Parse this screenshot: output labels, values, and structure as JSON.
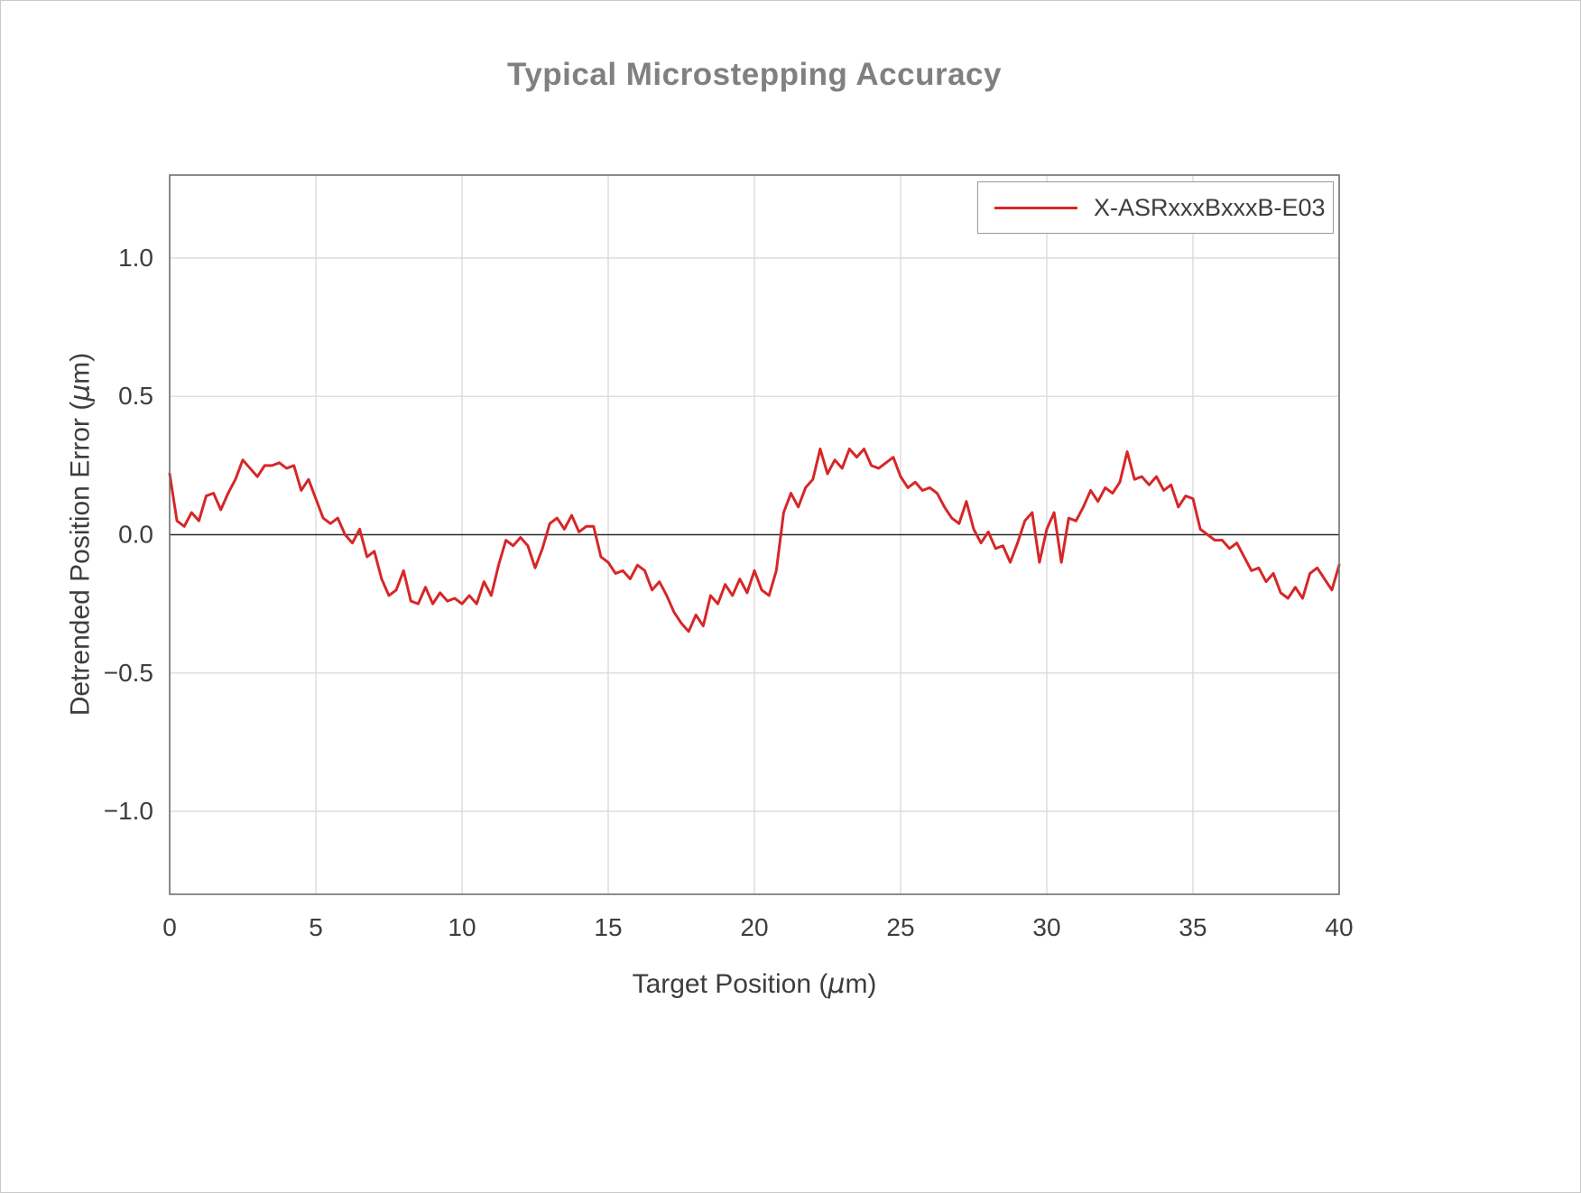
{
  "chart_data": {
    "type": "line",
    "title": "Typical Microstepping Accuracy",
    "xlabel": "Target Position (μm)",
    "ylabel": "Detrended Position Error (μm)",
    "xlabel_parts": {
      "pre": "Target Position (",
      "mu": "μ",
      "post": "m)"
    },
    "ylabel_parts": {
      "pre": "Detrended Position Error (",
      "mu": "μ",
      "post": "m)"
    },
    "xlim": [
      0,
      40
    ],
    "ylim": [
      -1.3,
      1.3
    ],
    "grid": true,
    "legend_position": "upper right",
    "x_ticks": {
      "values": [
        0,
        5,
        10,
        15,
        20,
        25,
        30,
        35,
        40
      ],
      "labels": [
        "0",
        "5",
        "10",
        "15",
        "20",
        "25",
        "30",
        "35",
        "40"
      ]
    },
    "y_ticks": {
      "values": [
        -1.0,
        -0.5,
        0.0,
        0.5,
        1.0
      ],
      "labels": [
        "−1.0",
        "−0.5",
        "0.0",
        "0.5",
        "1.0"
      ]
    },
    "legend": {
      "position": "upper right",
      "entries": [
        {
          "label": "X-ASRxxxBxxxB-E03",
          "color": "#d62728"
        }
      ]
    },
    "style": {
      "line_color": "#d62728",
      "grid_color": "#d9d9d9",
      "frame_color": "#707070",
      "zero_line_color": "#2b2b2b",
      "tick_color": "#3d3d3d",
      "title_color": "#808080",
      "label_color": "#3d3d3d",
      "background": "#ffffff"
    },
    "series": [
      {
        "name": "X-ASRxxxBxxxB-E03",
        "color": "#d62728",
        "x_start": 0,
        "x_step": 0.25,
        "y": [
          0.22,
          0.05,
          0.03,
          0.08,
          0.05,
          0.14,
          0.15,
          0.09,
          0.15,
          0.2,
          0.27,
          0.24,
          0.21,
          0.25,
          0.25,
          0.26,
          0.24,
          0.25,
          0.16,
          0.2,
          0.13,
          0.06,
          0.04,
          0.06,
          0.0,
          -0.03,
          0.02,
          -0.08,
          -0.06,
          -0.16,
          -0.22,
          -0.2,
          -0.13,
          -0.24,
          -0.25,
          -0.19,
          -0.25,
          -0.21,
          -0.24,
          -0.23,
          -0.25,
          -0.22,
          -0.25,
          -0.17,
          -0.22,
          -0.11,
          -0.02,
          -0.04,
          -0.01,
          -0.04,
          -0.12,
          -0.05,
          0.04,
          0.06,
          0.02,
          0.07,
          0.01,
          0.03,
          0.03,
          -0.08,
          -0.1,
          -0.14,
          -0.13,
          -0.16,
          -0.11,
          -0.13,
          -0.2,
          -0.17,
          -0.22,
          -0.28,
          -0.32,
          -0.35,
          -0.29,
          -0.33,
          -0.22,
          -0.25,
          -0.18,
          -0.22,
          -0.16,
          -0.21,
          -0.13,
          -0.2,
          -0.22,
          -0.13,
          0.08,
          0.15,
          0.1,
          0.17,
          0.2,
          0.31,
          0.22,
          0.27,
          0.24,
          0.31,
          0.28,
          0.31,
          0.25,
          0.24,
          0.26,
          0.28,
          0.21,
          0.17,
          0.19,
          0.16,
          0.17,
          0.15,
          0.1,
          0.06,
          0.04,
          0.12,
          0.02,
          -0.03,
          0.01,
          -0.05,
          -0.04,
          -0.1,
          -0.03,
          0.05,
          0.08,
          -0.1,
          0.02,
          0.08,
          -0.1,
          0.06,
          0.05,
          0.1,
          0.16,
          0.12,
          0.17,
          0.15,
          0.19,
          0.3,
          0.2,
          0.21,
          0.18,
          0.21,
          0.16,
          0.18,
          0.1,
          0.14,
          0.13,
          0.02,
          0.0,
          -0.02,
          -0.02,
          -0.05,
          -0.03,
          -0.08,
          -0.13,
          -0.12,
          -0.17,
          -0.14,
          -0.21,
          -0.23,
          -0.19,
          -0.23,
          -0.14,
          -0.12,
          -0.16,
          -0.2,
          -0.11
        ]
      }
    ]
  }
}
